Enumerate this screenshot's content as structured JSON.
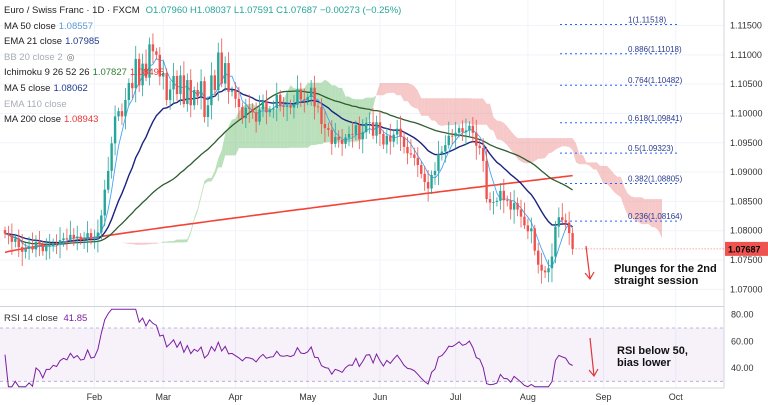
{
  "header": {
    "symbol": "Euro / Swiss Franc · 1D · FXCM",
    "ohlc": "O1.07960 H1.08037 L1.07591 C1.07687 −0.00273 (−0.25%)"
  },
  "legend": [
    {
      "label": "MA 50 close",
      "value": "1.08557",
      "color": "#5b9bd5",
      "muted": false
    },
    {
      "label": "EMA 21 close",
      "value": "1.07985",
      "color": "#1e3a8a",
      "muted": false
    },
    {
      "label": "BB 20 close 2",
      "value": "",
      "color": "#9aa0a6",
      "muted": true,
      "eye": true
    },
    {
      "label": "Ichimoku 9 26 52 26",
      "value": "1.07827",
      "value2": "1.08495",
      "color": "#2e7d32",
      "color2": "#e53935",
      "muted": false
    },
    {
      "label": "MA 5 close",
      "value": "1.08062",
      "color": "#1e3a8a",
      "muted": false
    },
    {
      "label": "EMA 110 close",
      "value": "",
      "color": "#9aa0a6",
      "muted": true
    },
    {
      "label": "MA 200 close",
      "value": "1.08943",
      "color": "#e53935",
      "muted": false
    }
  ],
  "rsi": {
    "label": "RSI 14 close",
    "value": "41.85"
  },
  "notes": {
    "price": [
      "Plunges for the 2nd",
      "straight session"
    ],
    "rsi": [
      "RSI below 50,",
      "bias lower"
    ]
  },
  "colors": {
    "up": "#26a69a",
    "down": "#ef5350",
    "ma200": "#f44336",
    "ema21": "#1a237e",
    "ma50": "#2e5e2e",
    "ma5": "#42a5f5",
    "cloud_green": "#81c784",
    "cloud_red": "#ef9a9a",
    "fib": "#2962ff",
    "rsi": "#7b1fa2",
    "arrow": "#e53935"
  },
  "chart_data": {
    "type": "candlestick",
    "title": "Euro / Swiss Franc · 1D · FXCM",
    "price_axis": {
      "ylim": [
        1.0675,
        1.1185
      ],
      "ticks": [
        1.115,
        1.11,
        1.105,
        1.1,
        1.095,
        1.09,
        1.085,
        1.08,
        1.075,
        1.07
      ]
    },
    "price_tick_labels": [
      "1.11500",
      "1.11000",
      "1.10500",
      "1.10000",
      "1.09500",
      "1.09000",
      "1.08500",
      "1.08000",
      "1.07500",
      "1.07000"
    ],
    "last_price": "1.07687",
    "x_axis": {
      "labels": [
        "Feb",
        "Mar",
        "Apr",
        "May",
        "Jun",
        "Jul",
        "Aug",
        "Sep",
        "Oct"
      ],
      "day_index": [
        26,
        46,
        67,
        88,
        109,
        131,
        152,
        174,
        195
      ]
    },
    "close": [
      1.0795,
      1.0792,
      1.0781,
      1.0787,
      1.0772,
      1.0764,
      1.0769,
      1.0773,
      1.0768,
      1.0781,
      1.0777,
      1.0765,
      1.0774,
      1.0774,
      1.0779,
      1.0777,
      1.0784,
      1.0787,
      1.0785,
      1.0793,
      1.0787,
      1.079,
      1.0784,
      1.0785,
      1.0796,
      1.0786,
      1.0787,
      1.0797,
      1.0826,
      1.087,
      1.0902,
      1.0949,
      1.0995,
      1.1004,
      1.0995,
      1.1023,
      1.1052,
      1.1043,
      1.1093,
      1.1048,
      1.1085,
      1.1061,
      1.1118,
      1.1106,
      1.11,
      1.1063,
      1.1069,
      1.1023,
      1.1041,
      1.1064,
      1.1033,
      1.1065,
      1.1016,
      1.1057,
      1.1014,
      1.104,
      1.1029,
      1.1055,
      1.0994,
      1.1014,
      1.1065,
      1.104,
      1.1104,
      1.1051,
      1.1086,
      1.1037,
      1.104,
      1.1025,
      1.1011,
      1.0992,
      1.101,
      1.1008,
      1.1002,
      1.0986,
      1.1007,
      1.1021,
      1.1002,
      1.1007,
      1.1009,
      1.1032,
      1.1013,
      1.1011,
      1.1014,
      1.101,
      1.1015,
      1.1041,
      1.1024,
      1.1022,
      1.1028,
      1.1044,
      1.1012,
      1.1011,
      1.0982,
      1.0975,
      1.0972,
      1.0948,
      1.096,
      1.0955,
      1.0948,
      1.0959,
      1.0965,
      1.0964,
      1.098,
      1.0956,
      1.0968,
      1.0984,
      1.0985,
      1.0962,
      1.0985,
      1.0965,
      1.0947,
      1.0962,
      1.0952,
      1.0964,
      1.0974,
      1.096,
      1.0943,
      1.0932,
      1.093,
      1.0924,
      1.0912,
      1.0897,
      1.0883,
      1.0872,
      1.0895,
      1.0902,
      1.0931,
      1.0935,
      1.0946,
      1.0962,
      1.0961,
      1.0967,
      1.0975,
      1.0968,
      1.0971,
      1.0979,
      1.0967,
      1.0945,
      1.0941,
      1.0919,
      1.0854,
      1.0848,
      1.0849,
      1.0851,
      1.0868,
      1.0852,
      1.0851,
      1.0836,
      1.0847,
      1.0836,
      1.0824,
      1.0809,
      1.0799,
      1.0804,
      1.0766,
      1.0742,
      1.0732,
      1.0729,
      1.0736,
      1.0756,
      1.0807,
      1.0823,
      1.0818,
      1.0814,
      1.0796,
      1.0769
    ],
    "ohlc_last": {
      "open": 1.0796,
      "high": 1.08037,
      "low": 1.07591,
      "close": 1.07687
    },
    "fib_levels": [
      {
        "ratio": "1",
        "value": 1.11518,
        "label": "1(1.11518)"
      },
      {
        "ratio": "0.886",
        "value": 1.11018,
        "label": "0.886(1.11018)"
      },
      {
        "ratio": "0.764",
        "value": 1.10482,
        "label": "0.764(1.10482)"
      },
      {
        "ratio": "0.618",
        "value": 1.09841,
        "label": "0.618(1.09841)"
      },
      {
        "ratio": "0.5",
        "value": 1.09323,
        "label": "0.5(1.09323)"
      },
      {
        "ratio": "0.382",
        "value": 1.08805,
        "label": "0.382(1.08805)"
      },
      {
        "ratio": "0.236",
        "value": 1.08164,
        "label": "0.236(1.08164)"
      }
    ],
    "ma200": {
      "start": 1.0763,
      "end": 1.0894
    },
    "rsi": {
      "ylim": [
        25,
        85
      ],
      "ticks": [
        80,
        60,
        40
      ],
      "tick_labels": [
        "80.00",
        "60.00",
        "40.00"
      ],
      "bands": [
        70,
        30
      ],
      "last": 41.85
    }
  }
}
